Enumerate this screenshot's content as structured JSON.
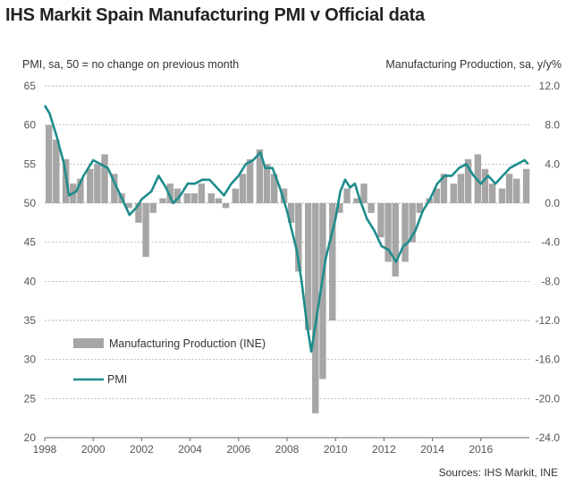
{
  "title": "IHS Markit Spain Manufacturing PMI v Official data",
  "left_axis_note": "PMI, sa, 50 = no change on previous month",
  "right_axis_note": "Manufacturing Production, sa, y/y%",
  "source": "Sources: IHS Markit, INE",
  "colors": {
    "bars": "#a6a6a6",
    "pmi_line": "#1f8c8c",
    "grid": "#9a9a9a",
    "axis": "#666666"
  },
  "chart_data": {
    "type": "bar",
    "x_range": [
      1998.0,
      2018.0
    ],
    "x_ticks": [
      "1998",
      "2000",
      "2002",
      "2004",
      "2006",
      "2008",
      "2010",
      "2012",
      "2014",
      "2016"
    ],
    "x_tick_values": [
      1998,
      2000,
      2002,
      2004,
      2006,
      2008,
      2010,
      2012,
      2014,
      2016
    ],
    "left_axis": {
      "range": [
        20,
        65
      ],
      "ticks": [
        "20",
        "25",
        "30",
        "35",
        "40",
        "45",
        "50",
        "55",
        "60",
        "65"
      ],
      "tick_values": [
        20,
        25,
        30,
        35,
        40,
        45,
        50,
        55,
        60,
        65
      ]
    },
    "right_axis": {
      "range": [
        -24.0,
        12.0
      ],
      "ticks": [
        "12.0",
        "8.0",
        "4.0",
        "0.0",
        "-4.0",
        "-8.0",
        "-12.0",
        "-16.0",
        "-20.0",
        "-24.0"
      ],
      "tick_values": [
        12,
        8,
        4,
        0,
        -4,
        -8,
        -12,
        -16,
        -20,
        -24
      ]
    },
    "grid": "horizontal dashed",
    "legend_position": "bottom-left",
    "series": [
      {
        "name": "Manufacturing Production (INE)",
        "type": "bar",
        "axis": "right",
        "points": [
          [
            1998.0,
            8.0
          ],
          [
            1998.3,
            6.5
          ],
          [
            1998.7,
            4.5
          ],
          [
            1999.0,
            2.0
          ],
          [
            1999.3,
            2.5
          ],
          [
            1999.7,
            3.5
          ],
          [
            2000.0,
            4.0
          ],
          [
            2000.3,
            5.0
          ],
          [
            2000.7,
            3.0
          ],
          [
            2001.0,
            1.0
          ],
          [
            2001.3,
            -0.5
          ],
          [
            2001.7,
            -2.0
          ],
          [
            2002.0,
            -5.5
          ],
          [
            2002.3,
            -1.0
          ],
          [
            2002.7,
            0.5
          ],
          [
            2003.0,
            2.0
          ],
          [
            2003.3,
            1.5
          ],
          [
            2003.7,
            1.0
          ],
          [
            2004.0,
            1.0
          ],
          [
            2004.3,
            2.0
          ],
          [
            2004.7,
            1.0
          ],
          [
            2005.0,
            0.5
          ],
          [
            2005.3,
            -0.5
          ],
          [
            2005.7,
            1.5
          ],
          [
            2006.0,
            3.0
          ],
          [
            2006.3,
            4.5
          ],
          [
            2006.7,
            5.5
          ],
          [
            2007.0,
            4.0
          ],
          [
            2007.3,
            3.0
          ],
          [
            2007.7,
            1.5
          ],
          [
            2008.0,
            -2.0
          ],
          [
            2008.3,
            -7.0
          ],
          [
            2008.7,
            -13.0
          ],
          [
            2009.0,
            -21.5
          ],
          [
            2009.3,
            -18.0
          ],
          [
            2009.7,
            -12.0
          ],
          [
            2010.0,
            -1.0
          ],
          [
            2010.3,
            1.5
          ],
          [
            2010.7,
            0.5
          ],
          [
            2011.0,
            2.0
          ],
          [
            2011.3,
            -1.0
          ],
          [
            2011.7,
            -3.5
          ],
          [
            2012.0,
            -6.0
          ],
          [
            2012.3,
            -7.5
          ],
          [
            2012.7,
            -6.0
          ],
          [
            2013.0,
            -4.0
          ],
          [
            2013.3,
            -1.0
          ],
          [
            2013.7,
            0.5
          ],
          [
            2014.0,
            1.5
          ],
          [
            2014.3,
            3.0
          ],
          [
            2014.7,
            2.0
          ],
          [
            2015.0,
            3.0
          ],
          [
            2015.3,
            4.5
          ],
          [
            2015.7,
            5.0
          ],
          [
            2016.0,
            3.5
          ],
          [
            2016.3,
            2.0
          ],
          [
            2016.7,
            1.5
          ],
          [
            2017.0,
            3.0
          ],
          [
            2017.3,
            2.5
          ],
          [
            2017.7,
            3.5
          ]
        ]
      },
      {
        "name": "PMI",
        "type": "line",
        "axis": "left",
        "points": [
          [
            1998.0,
            62.5
          ],
          [
            1998.2,
            61.5
          ],
          [
            1998.5,
            58.5
          ],
          [
            1998.8,
            55.0
          ],
          [
            1999.0,
            51.0
          ],
          [
            1999.3,
            51.5
          ],
          [
            1999.6,
            53.5
          ],
          [
            2000.0,
            55.5
          ],
          [
            2000.3,
            55.0
          ],
          [
            2000.6,
            54.5
          ],
          [
            2000.9,
            52.5
          ],
          [
            2001.2,
            50.5
          ],
          [
            2001.5,
            48.5
          ],
          [
            2001.8,
            49.5
          ],
          [
            2002.0,
            50.5
          ],
          [
            2002.4,
            51.5
          ],
          [
            2002.7,
            53.5
          ],
          [
            2003.0,
            52.0
          ],
          [
            2003.3,
            50.0
          ],
          [
            2003.6,
            51.0
          ],
          [
            2003.9,
            52.5
          ],
          [
            2004.2,
            52.5
          ],
          [
            2004.5,
            53.0
          ],
          [
            2004.8,
            53.0
          ],
          [
            2005.1,
            52.0
          ],
          [
            2005.4,
            51.0
          ],
          [
            2005.7,
            52.5
          ],
          [
            2006.0,
            53.5
          ],
          [
            2006.3,
            55.0
          ],
          [
            2006.6,
            55.5
          ],
          [
            2006.9,
            56.5
          ],
          [
            2007.1,
            54.5
          ],
          [
            2007.4,
            54.5
          ],
          [
            2007.7,
            52.0
          ],
          [
            2008.0,
            49.0
          ],
          [
            2008.2,
            46.5
          ],
          [
            2008.4,
            44.0
          ],
          [
            2008.6,
            40.0
          ],
          [
            2008.8,
            35.0
          ],
          [
            2009.0,
            31.0
          ],
          [
            2009.2,
            35.0
          ],
          [
            2009.4,
            39.0
          ],
          [
            2009.6,
            43.0
          ],
          [
            2009.8,
            45.5
          ],
          [
            2010.0,
            48.0
          ],
          [
            2010.2,
            51.5
          ],
          [
            2010.4,
            53.0
          ],
          [
            2010.6,
            52.0
          ],
          [
            2010.8,
            52.5
          ],
          [
            2011.0,
            50.5
          ],
          [
            2011.3,
            48.0
          ],
          [
            2011.6,
            46.5
          ],
          [
            2011.9,
            44.5
          ],
          [
            2012.2,
            44.0
          ],
          [
            2012.5,
            42.5
          ],
          [
            2012.8,
            44.5
          ],
          [
            2013.0,
            45.0
          ],
          [
            2013.3,
            46.5
          ],
          [
            2013.6,
            49.0
          ],
          [
            2013.9,
            50.5
          ],
          [
            2014.2,
            52.5
          ],
          [
            2014.5,
            53.5
          ],
          [
            2014.8,
            53.5
          ],
          [
            2015.1,
            54.5
          ],
          [
            2015.4,
            55.0
          ],
          [
            2015.7,
            53.5
          ],
          [
            2016.0,
            52.5
          ],
          [
            2016.3,
            53.5
          ],
          [
            2016.6,
            52.5
          ],
          [
            2016.9,
            53.5
          ],
          [
            2017.2,
            54.5
          ],
          [
            2017.5,
            55.0
          ],
          [
            2017.8,
            55.5
          ],
          [
            2017.95,
            55.0
          ]
        ]
      }
    ]
  }
}
